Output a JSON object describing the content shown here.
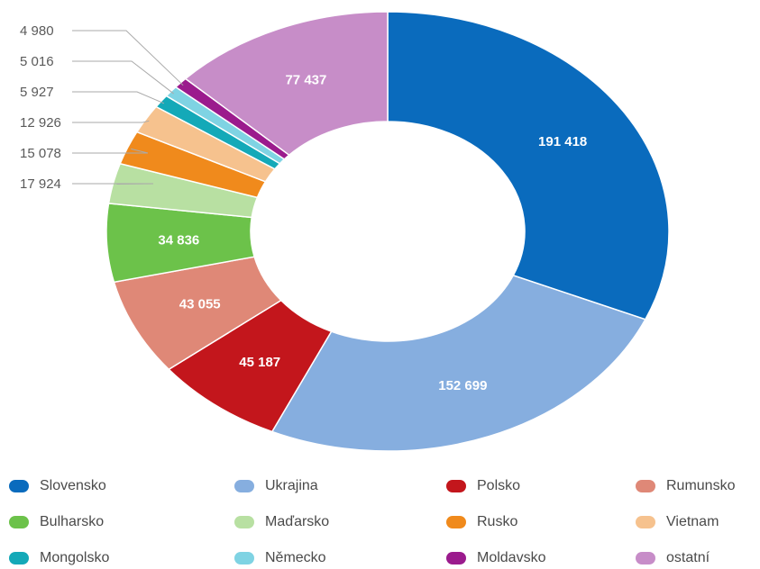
{
  "chart_data": {
    "type": "donut",
    "title": "",
    "series": [
      {
        "category": "Slovensko",
        "value": 191418,
        "label": "191 418",
        "color": "#0a6bbd"
      },
      {
        "category": "Ukrajina",
        "value": 152699,
        "label": "152 699",
        "color": "#86aedf"
      },
      {
        "category": "Polsko",
        "value": 45187,
        "label": "45 187",
        "color": "#c3161c"
      },
      {
        "category": "Rumunsko",
        "value": 43055,
        "label": "43 055",
        "color": "#df8877"
      },
      {
        "category": "Bulharsko",
        "value": 34836,
        "label": "34 836",
        "color": "#6cc24a"
      },
      {
        "category": "Maďarsko",
        "value": 17924,
        "label": "17 924",
        "color": "#b8e0a2"
      },
      {
        "category": "Rusko",
        "value": 15078,
        "label": "15 078",
        "color": "#f08a1c"
      },
      {
        "category": "Vietnam",
        "value": 12926,
        "label": "12 926",
        "color": "#f6c28e"
      },
      {
        "category": "Mongolsko",
        "value": 5927,
        "label": "5 927",
        "color": "#14a9b8"
      },
      {
        "category": "Německo",
        "value": 5016,
        "label": "5 016",
        "color": "#7fd3e3"
      },
      {
        "category": "Moldavsko",
        "value": 4980,
        "label": "4 980",
        "color": "#9b1b8d"
      },
      {
        "category": "ostatní",
        "value": 77437,
        "label": "77 437",
        "color": "#c78dc8"
      }
    ],
    "legend_position": "bottom",
    "start_angle_deg": 0,
    "direction": "clockwise",
    "inside_label_color": "#ffffff",
    "outside_label_color": "#5a5a5a",
    "leader_line_color": "#aaaaaa"
  }
}
